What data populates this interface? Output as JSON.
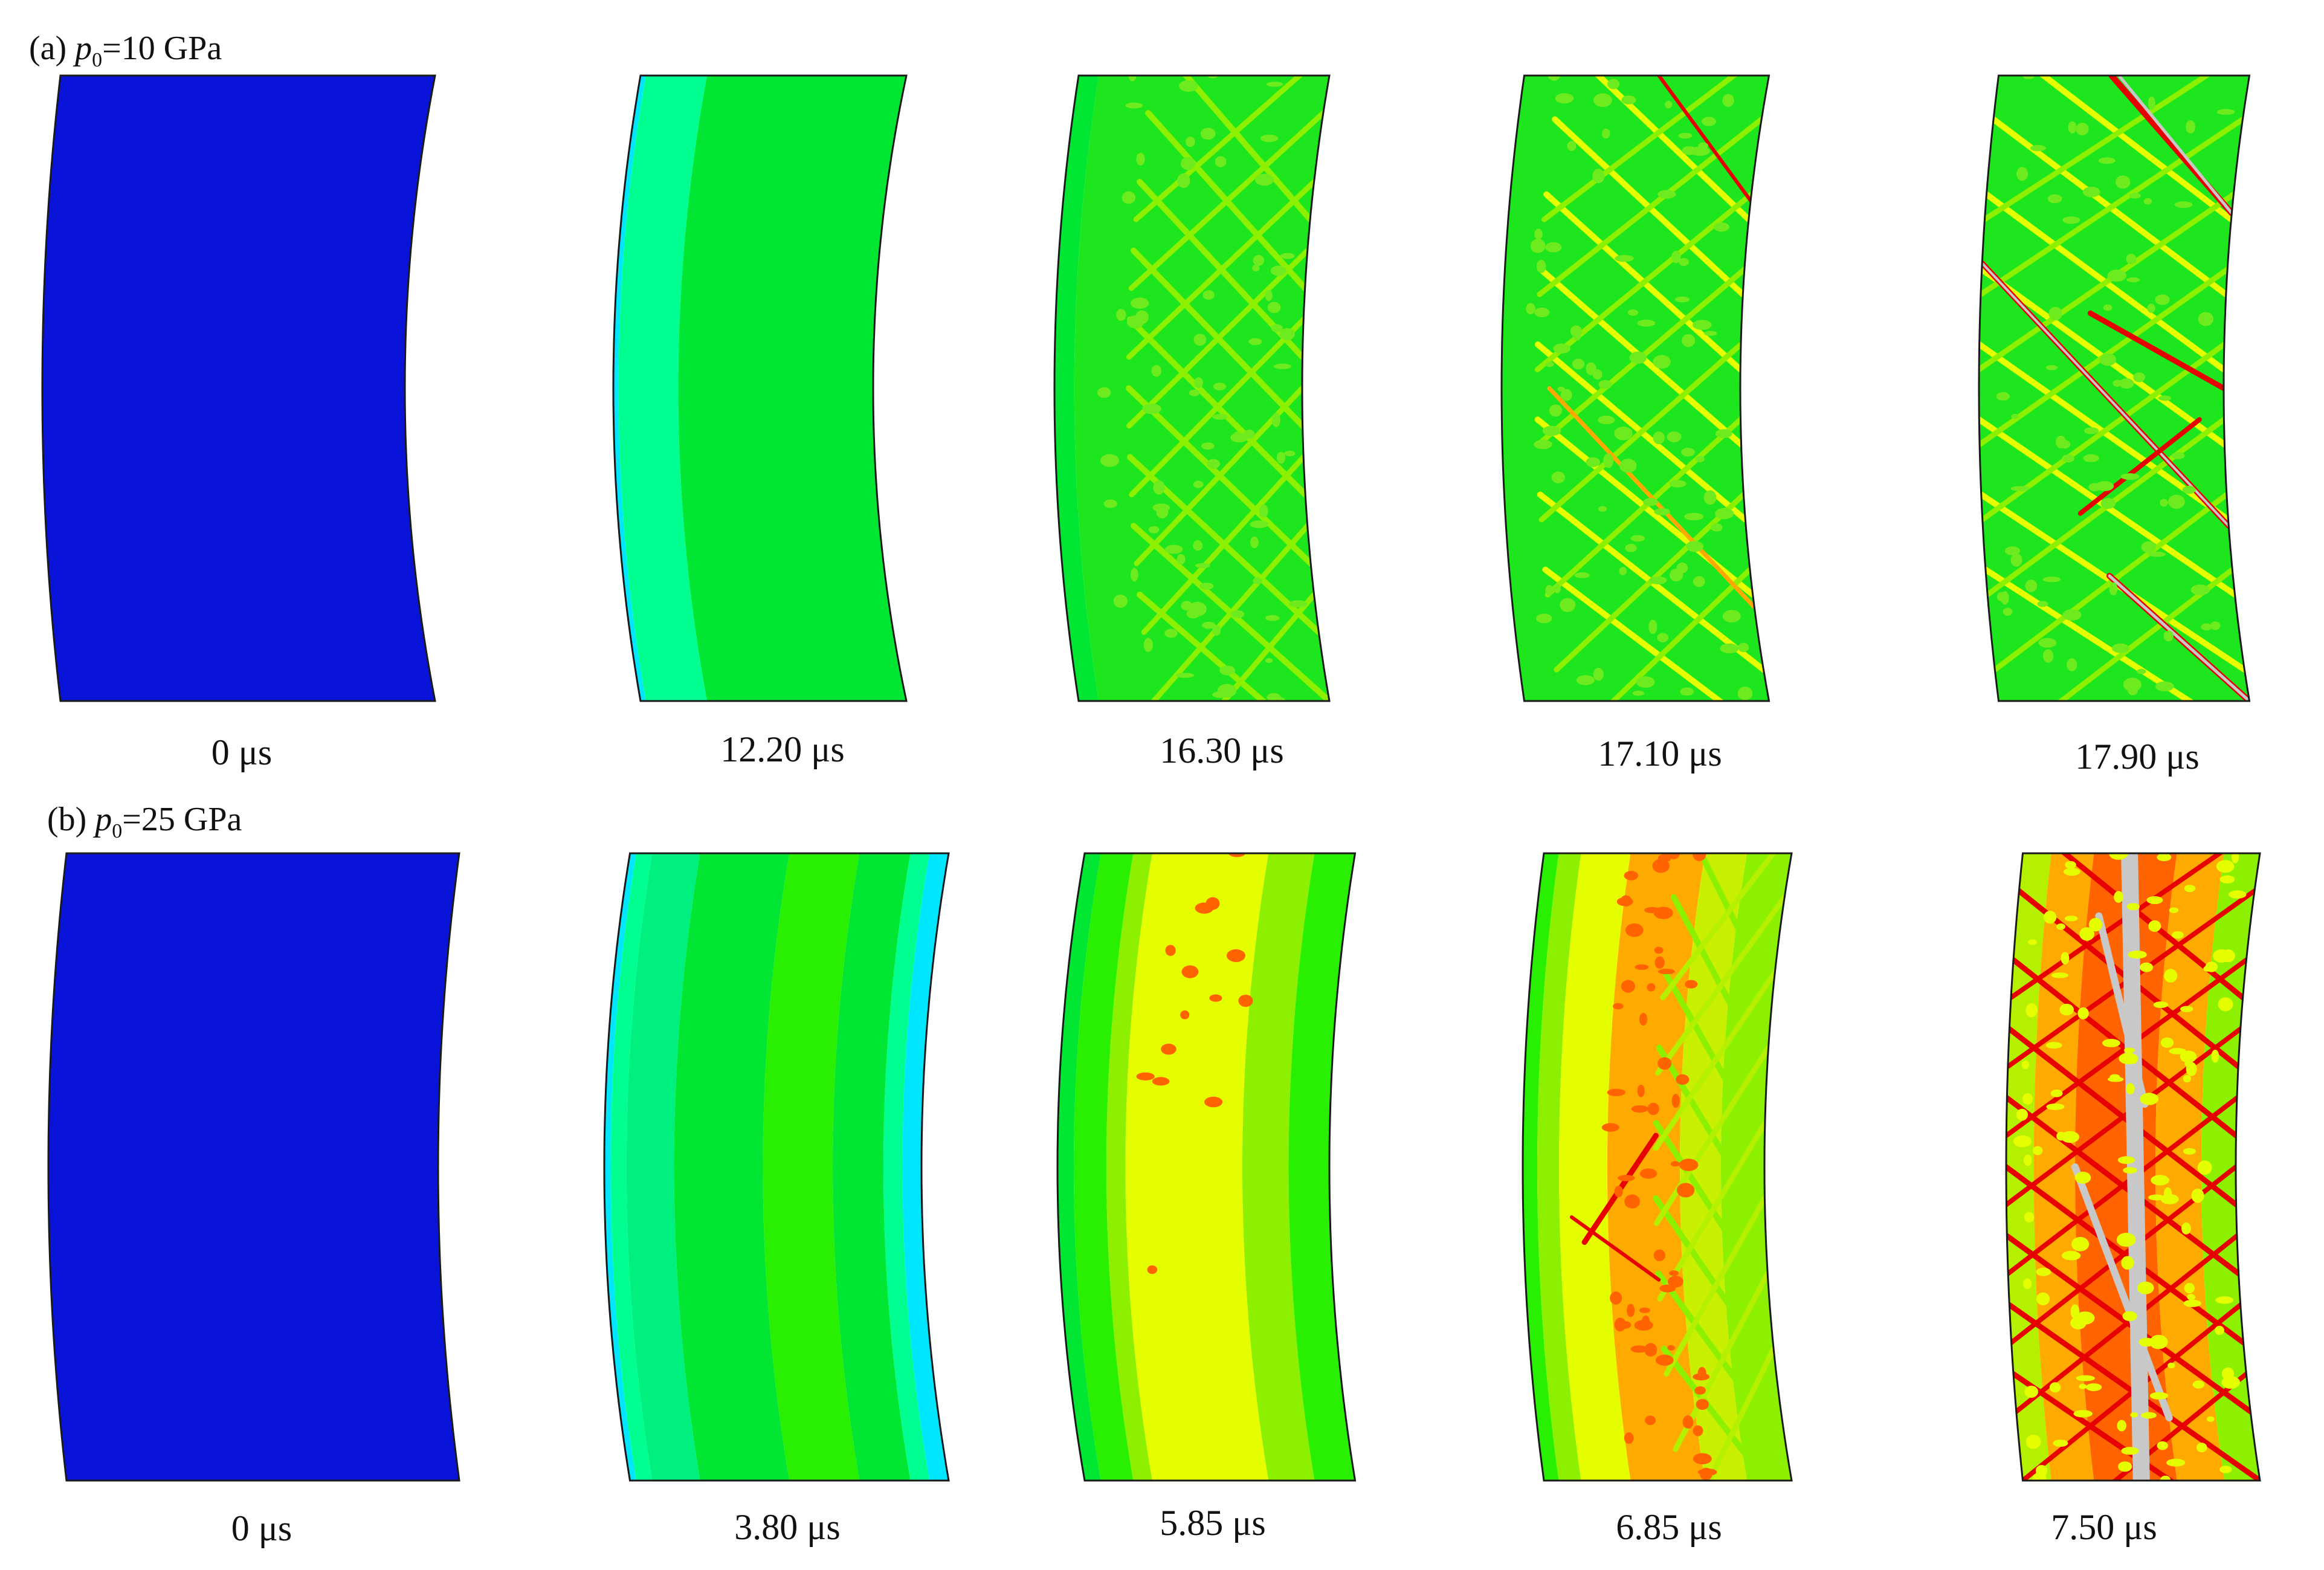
{
  "rows": [
    {
      "label": {
        "prefix": "(a)",
        "symbol": "p",
        "subscript": "0",
        "value": "=10 GPa"
      },
      "panels": [
        {
          "time": "0 μs"
        },
        {
          "time": "12.20 μs"
        },
        {
          "time": "16.30 μs"
        },
        {
          "time": "17.10 μs"
        },
        {
          "time": "17.90 μs"
        }
      ]
    },
    {
      "label": {
        "prefix": "(b)",
        "symbol": "p",
        "subscript": "0",
        "value": "=25 GPa"
      },
      "panels": [
        {
          "time": "0 μs"
        },
        {
          "time": "3.80 μs"
        },
        {
          "time": "5.85 μs"
        },
        {
          "time": "6.85 μs"
        },
        {
          "time": "7.50 μs"
        }
      ]
    }
  ],
  "colors": {
    "blue": "#0a14d8",
    "cyan_green": "#00ff90",
    "green": "#00e632",
    "bright_green": "#28f000",
    "lime": "#8cf000",
    "yellow": "#e6ff00",
    "orange": "#ffaa00",
    "orange_red": "#ff6400",
    "red": "#e60000",
    "gray": "#c8c8c8",
    "teal": "#00e6ff"
  }
}
